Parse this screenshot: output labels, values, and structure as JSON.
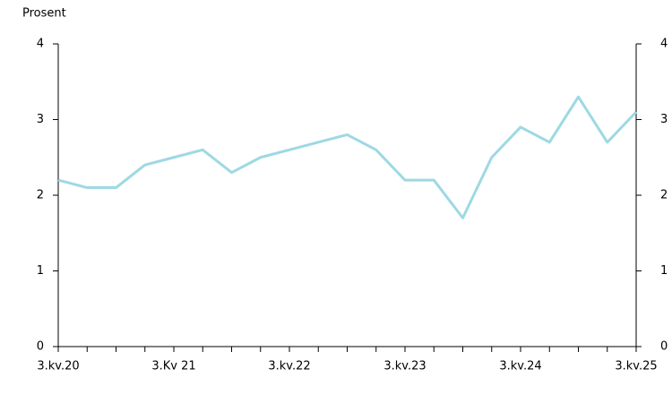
{
  "chart_data": {
    "type": "line",
    "y_label": "Prosent",
    "categories": [
      "3.kv.20",
      null,
      null,
      null,
      "3.Kv 21",
      null,
      null,
      null,
      "3.kv.22",
      null,
      null,
      null,
      "3.kv.23",
      null,
      null,
      null,
      "3.kv.24",
      null,
      null,
      null,
      "3.kv.25"
    ],
    "series": [
      {
        "color": "#9dd9e3",
        "values": [
          2.2,
          2.1,
          2.1,
          2.4,
          2.5,
          2.6,
          2.3,
          2.5,
          2.6,
          2.7,
          2.8,
          2.6,
          2.2,
          2.2,
          1.7,
          2.5,
          2.9,
          2.7,
          3.3,
          2.7,
          3.1
        ]
      }
    ],
    "ylim": [
      0,
      4
    ],
    "yticks": [
      0,
      1,
      2,
      3,
      4
    ],
    "y2lim": [
      0,
      4
    ],
    "y2ticks": [
      0,
      1,
      2,
      3,
      4
    ]
  }
}
